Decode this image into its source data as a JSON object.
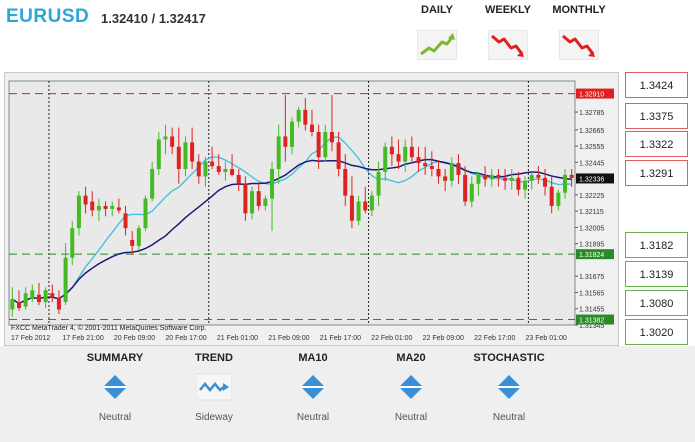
{
  "header": {
    "symbol": "EURUSD",
    "quote": "1.32410 / 1.32417"
  },
  "periods": [
    {
      "label": "DAILY",
      "icon": "trend-up-icon",
      "direction": "up"
    },
    {
      "label": "WEEKLY",
      "icon": "trend-down-icon",
      "direction": "down"
    },
    {
      "label": "MONTHLY",
      "icon": "trend-down-icon",
      "direction": "down"
    }
  ],
  "pivot_levels": {
    "resistance": [
      "1.3424",
      "1.3375",
      "1.3322",
      "1.3291"
    ],
    "support": [
      "1.3182",
      "1.3139",
      "1.3080",
      "1.3020"
    ],
    "resistance_color": "#e06060",
    "support_color": "#66b050"
  },
  "chart_watermark": "FXCC  MetaTrader 4, © 2001-2011 MetaQuotes Software Corp.",
  "chart_data": {
    "type": "candlestick",
    "ylim": [
      1.31345,
      1.32995
    ],
    "price_ticks": [
      "1.32785",
      "1.32665",
      "1.32555",
      "1.32445",
      "1.32225",
      "1.32115",
      "1.32005",
      "1.31895",
      "1.31675",
      "1.31565",
      "1.31455",
      "1.31345"
    ],
    "price_tick_values": [
      1.32785,
      1.32665,
      1.32555,
      1.32445,
      1.32225,
      1.32115,
      1.32005,
      1.31895,
      1.31675,
      1.31565,
      1.31455,
      1.31345
    ],
    "current_price": "1.32336",
    "current_price_value": 1.32336,
    "top_line": "1.32910",
    "top_line_value": 1.3291,
    "support_line": "1.31824",
    "support_line_value": 1.31824,
    "bottom_line": "1.31382",
    "bottom_line_value": 1.31382,
    "time_labels": [
      "17 Feb 2012",
      "17 Feb 21:00",
      "20 Feb 09:00",
      "20 Feb 17:00",
      "21 Feb 01:00",
      "21 Feb 09:00",
      "21 Feb 17:00",
      "22 Feb 01:00",
      "22 Feb 09:00",
      "22 Feb 17:00",
      "23 Feb 01:00"
    ],
    "day_separators": [
      6,
      30,
      54,
      78
    ],
    "candles": [
      [
        1.3145,
        1.316,
        1.314,
        1.3152
      ],
      [
        1.315,
        1.3158,
        1.3144,
        1.3146
      ],
      [
        1.3147,
        1.316,
        1.3145,
        1.3156
      ],
      [
        1.3152,
        1.3162,
        1.315,
        1.3158
      ],
      [
        1.3155,
        1.3163,
        1.3148,
        1.315
      ],
      [
        1.315,
        1.316,
        1.3146,
        1.3158
      ],
      [
        1.3156,
        1.3162,
        1.315,
        1.3153
      ],
      [
        1.3153,
        1.3158,
        1.3142,
        1.3145
      ],
      [
        1.315,
        1.319,
        1.3148,
        1.318
      ],
      [
        1.318,
        1.3205,
        1.3175,
        1.32
      ],
      [
        1.32,
        1.3225,
        1.3195,
        1.3222
      ],
      [
        1.3222,
        1.3228,
        1.321,
        1.3216
      ],
      [
        1.3218,
        1.3225,
        1.3208,
        1.3212
      ],
      [
        1.3212,
        1.322,
        1.3205,
        1.3215
      ],
      [
        1.3215,
        1.3218,
        1.3208,
        1.3213
      ],
      [
        1.3213,
        1.3218,
        1.3208,
        1.3215
      ],
      [
        1.3214,
        1.322,
        1.321,
        1.3212
      ],
      [
        1.321,
        1.3215,
        1.3195,
        1.32
      ],
      [
        1.3192,
        1.3198,
        1.3182,
        1.3188
      ],
      [
        1.3188,
        1.3202,
        1.3185,
        1.32
      ],
      [
        1.32,
        1.3222,
        1.3198,
        1.322
      ],
      [
        1.322,
        1.3245,
        1.3218,
        1.324
      ],
      [
        1.324,
        1.3265,
        1.3236,
        1.326
      ],
      [
        1.326,
        1.327,
        1.325,
        1.3262
      ],
      [
        1.3262,
        1.3268,
        1.325,
        1.3255
      ],
      [
        1.3255,
        1.3268,
        1.323,
        1.324
      ],
      [
        1.324,
        1.3262,
        1.3235,
        1.3258
      ],
      [
        1.3258,
        1.3268,
        1.324,
        1.3245
      ],
      [
        1.3245,
        1.325,
        1.323,
        1.3235
      ],
      [
        1.3235,
        1.3248,
        1.3228,
        1.3245
      ],
      [
        1.3245,
        1.3255,
        1.324,
        1.3242
      ],
      [
        1.3242,
        1.325,
        1.3236,
        1.3238
      ],
      [
        1.3238,
        1.3245,
        1.3232,
        1.324
      ],
      [
        1.324,
        1.325,
        1.3235,
        1.3236
      ],
      [
        1.3236,
        1.324,
        1.3225,
        1.323
      ],
      [
        1.323,
        1.3235,
        1.3205,
        1.321
      ],
      [
        1.321,
        1.3228,
        1.3206,
        1.3225
      ],
      [
        1.3225,
        1.323,
        1.3212,
        1.3215
      ],
      [
        1.3215,
        1.3222,
        1.3212,
        1.322
      ],
      [
        1.322,
        1.3245,
        1.3198,
        1.324
      ],
      [
        1.324,
        1.327,
        1.323,
        1.3262
      ],
      [
        1.3262,
        1.329,
        1.3245,
        1.3255
      ],
      [
        1.3255,
        1.3275,
        1.325,
        1.3272
      ],
      [
        1.3272,
        1.3282,
        1.3268,
        1.328
      ],
      [
        1.328,
        1.3288,
        1.3266,
        1.327
      ],
      [
        1.327,
        1.328,
        1.3262,
        1.3265
      ],
      [
        1.3265,
        1.327,
        1.324,
        1.3248
      ],
      [
        1.3248,
        1.327,
        1.3245,
        1.3265
      ],
      [
        1.3265,
        1.329,
        1.3252,
        1.3258
      ],
      [
        1.3258,
        1.3265,
        1.3235,
        1.324
      ],
      [
        1.324,
        1.325,
        1.3215,
        1.3222
      ],
      [
        1.3222,
        1.3235,
        1.32,
        1.3205
      ],
      [
        1.3205,
        1.3222,
        1.3202,
        1.3218
      ],
      [
        1.3218,
        1.3228,
        1.321,
        1.3212
      ],
      [
        1.3212,
        1.3225,
        1.3208,
        1.3222
      ],
      [
        1.3222,
        1.3245,
        1.3215,
        1.3238
      ],
      [
        1.3238,
        1.3258,
        1.3232,
        1.3255
      ],
      [
        1.3255,
        1.3262,
        1.3242,
        1.325
      ],
      [
        1.325,
        1.326,
        1.324,
        1.3245
      ],
      [
        1.3245,
        1.326,
        1.3238,
        1.3255
      ],
      [
        1.3255,
        1.3262,
        1.3245,
        1.3248
      ],
      [
        1.3248,
        1.3255,
        1.3238,
        1.3244
      ],
      [
        1.3244,
        1.3255,
        1.3236,
        1.3242
      ],
      [
        1.3242,
        1.3252,
        1.3235,
        1.324
      ],
      [
        1.324,
        1.3246,
        1.323,
        1.3235
      ],
      [
        1.3235,
        1.324,
        1.3225,
        1.3232
      ],
      [
        1.3232,
        1.3248,
        1.3228,
        1.3244
      ],
      [
        1.3244,
        1.325,
        1.323,
        1.3236
      ],
      [
        1.3236,
        1.3242,
        1.3215,
        1.3218
      ],
      [
        1.3218,
        1.3235,
        1.3214,
        1.323
      ],
      [
        1.323,
        1.3238,
        1.3222,
        1.3236
      ],
      [
        1.3236,
        1.3242,
        1.3228,
        1.3233
      ],
      [
        1.3233,
        1.324,
        1.3228,
        1.3236
      ],
      [
        1.3236,
        1.324,
        1.3228,
        1.3234
      ],
      [
        1.3234,
        1.324,
        1.3226,
        1.3232
      ],
      [
        1.3232,
        1.324,
        1.3226,
        1.3234
      ],
      [
        1.3234,
        1.3238,
        1.3222,
        1.3226
      ],
      [
        1.3226,
        1.3235,
        1.322,
        1.3232
      ],
      [
        1.3232,
        1.3238,
        1.3226,
        1.3236
      ],
      [
        1.3236,
        1.3242,
        1.323,
        1.3234
      ],
      [
        1.3234,
        1.324,
        1.3222,
        1.3228
      ],
      [
        1.3228,
        1.3236,
        1.321,
        1.3215
      ],
      [
        1.3215,
        1.3226,
        1.3212,
        1.3224
      ],
      [
        1.3224,
        1.324,
        1.322,
        1.3236
      ],
      [
        1.3236,
        1.324,
        1.3228,
        1.3234
      ]
    ],
    "ma_fast_color": "#3cc0dc",
    "ma_slow_color": "#1a1a7a",
    "up_color": "#44bb22",
    "down_color": "#dd2222"
  },
  "indicators": [
    {
      "title": "SUMMARY",
      "icon": "neutral-diamond-icon",
      "value": "Neutral"
    },
    {
      "title": "TREND",
      "icon": "sideway-icon",
      "value": "Sideway"
    },
    {
      "title": "MA10",
      "icon": "neutral-diamond-icon",
      "value": "Neutral"
    },
    {
      "title": "MA20",
      "icon": "neutral-diamond-icon",
      "value": "Neutral"
    },
    {
      "title": "STOCHASTIC",
      "icon": "neutral-diamond-icon",
      "value": "Neutral"
    }
  ]
}
